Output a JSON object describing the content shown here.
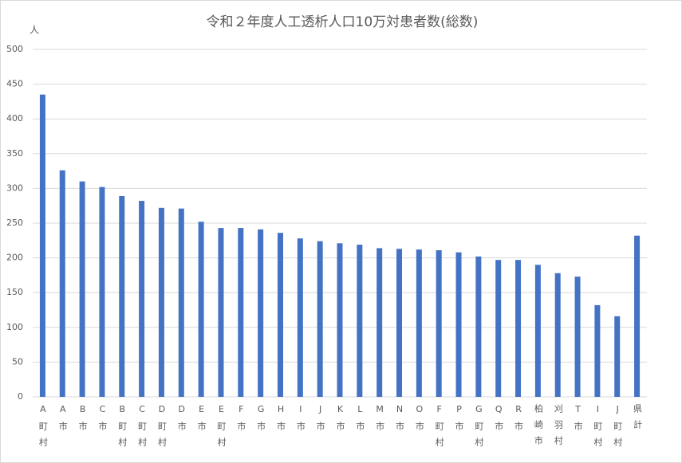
{
  "chart_data": {
    "type": "bar",
    "title": "令和２年度人工透析人口10万対患者数(総数)",
    "y_label": "人",
    "categories": [
      "A町村",
      "A市",
      "B市",
      "C市",
      "B町村",
      "C町村",
      "D町村",
      "D市",
      "E市",
      "E町村",
      "F市",
      "G市",
      "H市",
      "I市",
      "J市",
      "K市",
      "L市",
      "M市",
      "N市",
      "O市",
      "F町村",
      "P市",
      "G町村",
      "Q市",
      "R市",
      "柏崎市",
      "刈羽村",
      "T市",
      "I町村",
      "J町村",
      "県計"
    ],
    "values": [
      435,
      326,
      310,
      302,
      289,
      282,
      272,
      271,
      252,
      243,
      243,
      241,
      236,
      228,
      224,
      221,
      219,
      214,
      213,
      212,
      211,
      208,
      202,
      197,
      197,
      190,
      178,
      173,
      132,
      116,
      232
    ],
    "color": "#4472c4",
    "ylim": [
      0,
      500
    ],
    "yticks": [
      0,
      50,
      100,
      150,
      200,
      250,
      300,
      350,
      400,
      450,
      500
    ],
    "grid": true
  }
}
